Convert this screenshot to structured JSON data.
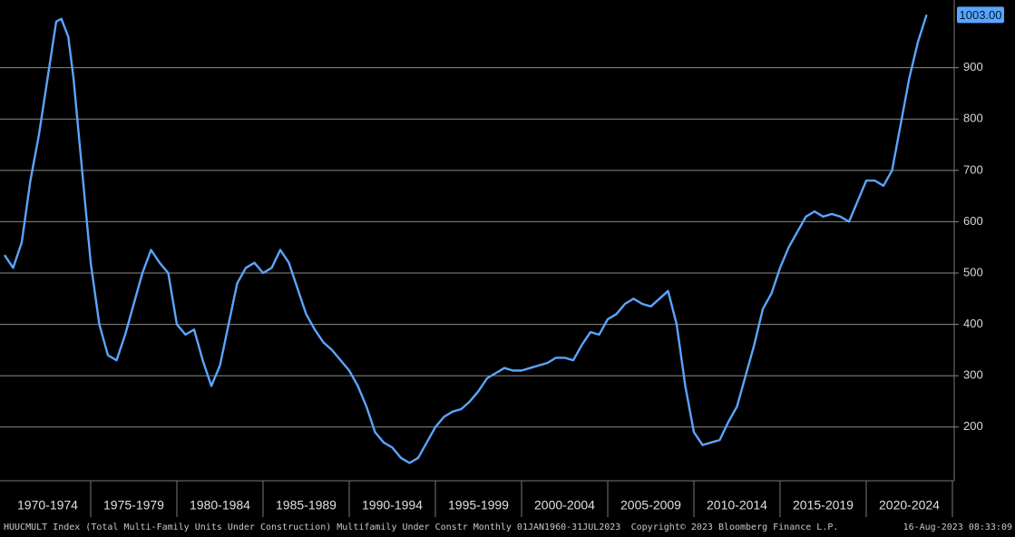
{
  "chart_data": {
    "type": "line",
    "categories": [
      "1970-1974",
      "1975-1979",
      "1980-1984",
      "1985-1989",
      "1990-1994",
      "1995-1999",
      "2000-2004",
      "2005-2009",
      "2010-2014",
      "2015-2019",
      "2020-2024"
    ],
    "x": [
      1970,
      1970.5,
      1971,
      1971.5,
      1972,
      1972.5,
      1973,
      1973.3,
      1973.7,
      1974,
      1974.5,
      1975,
      1975.5,
      1976,
      1976.5,
      1977,
      1977.5,
      1978,
      1978.5,
      1979,
      1979.5,
      1980,
      1980.5,
      1981,
      1981.5,
      1982,
      1982.5,
      1983,
      1983.5,
      1984,
      1984.5,
      1985,
      1985.5,
      1986,
      1986.5,
      1987,
      1987.5,
      1988,
      1988.5,
      1989,
      1989.5,
      1990,
      1990.5,
      1991,
      1991.5,
      1992,
      1992.5,
      1993,
      1993.5,
      1994,
      1994.5,
      1995,
      1995.5,
      1996,
      1996.5,
      1997,
      1997.5,
      1998,
      1998.5,
      1999,
      1999.5,
      2000,
      2000.5,
      2001,
      2001.5,
      2002,
      2002.5,
      2003,
      2003.5,
      2004,
      2004.5,
      2005,
      2005.5,
      2006,
      2006.5,
      2007,
      2007.5,
      2008,
      2008.5,
      2009,
      2009.5,
      2010,
      2010.5,
      2011,
      2011.5,
      2012,
      2012.5,
      2013,
      2013.5,
      2014,
      2014.5,
      2015,
      2015.5,
      2016,
      2016.5,
      2017,
      2017.5,
      2018,
      2018.5,
      2019,
      2019.5,
      2020,
      2020.5,
      2021,
      2021.5,
      2022,
      2022.5,
      2023,
      2023.5
    ],
    "series": [
      {
        "color": "#5aa5ff",
        "values": [
          535,
          510,
          560,
          680,
          770,
          880,
          990,
          995,
          960,
          880,
          700,
          520,
          400,
          340,
          330,
          380,
          440,
          500,
          545,
          520,
          500,
          400,
          380,
          390,
          330,
          280,
          320,
          400,
          480,
          510,
          520,
          500,
          510,
          545,
          520,
          470,
          420,
          390,
          365,
          350,
          330,
          310,
          280,
          240,
          190,
          170,
          160,
          140,
          130,
          140,
          170,
          200,
          220,
          230,
          235,
          250,
          270,
          295,
          305,
          315,
          310,
          310,
          315,
          320,
          325,
          335,
          335,
          330,
          360,
          385,
          380,
          410,
          420,
          440,
          450,
          440,
          435,
          450,
          465,
          400,
          280,
          190,
          165,
          170,
          175,
          210,
          240,
          300,
          360,
          430,
          460,
          510,
          550,
          580,
          610,
          620,
          610,
          615,
          610,
          600,
          640,
          680,
          680,
          670,
          700,
          790,
          880,
          950,
          1003
        ],
        "value_labels": [
          null,
          null,
          null,
          null,
          null,
          null,
          null,
          null,
          null,
          null,
          null,
          null,
          null,
          null,
          null,
          null,
          null,
          null,
          null,
          null,
          null,
          null,
          null,
          null,
          null,
          null,
          null,
          null,
          null,
          null,
          null,
          null,
          null,
          null,
          null,
          null,
          null,
          null,
          null,
          null,
          null,
          null,
          null,
          null,
          null,
          null,
          null,
          null,
          null,
          null,
          null,
          null,
          null,
          null,
          null,
          null,
          null,
          null,
          null,
          null,
          null,
          null,
          null,
          null,
          null,
          null,
          null,
          null,
          null,
          null,
          null,
          null,
          null,
          null,
          null,
          null,
          null,
          null,
          null,
          null,
          null,
          null,
          null,
          null,
          null,
          null,
          null,
          null,
          null,
          null,
          null,
          null,
          null,
          null,
          null,
          null,
          null,
          null,
          null,
          null,
          null,
          null,
          null,
          null,
          null,
          null,
          null,
          null,
          "1003.00"
        ]
      }
    ],
    "xlim": [
      1970,
      2025
    ],
    "ylim": [
      100,
      1020
    ],
    "yticks": [
      200,
      300,
      400,
      500,
      600,
      700,
      800,
      900
    ],
    "grid": true,
    "footer_left": "HUUCMULT Index (Total Multi-Family Units Under Construction) Multifamily Under Constr  Monthly 01JAN1960-31JUL2023",
    "footer_center": "Copyright© 2023 Bloomberg Finance L.P.",
    "footer_right": "16-Aug-2023 08:33:09"
  }
}
